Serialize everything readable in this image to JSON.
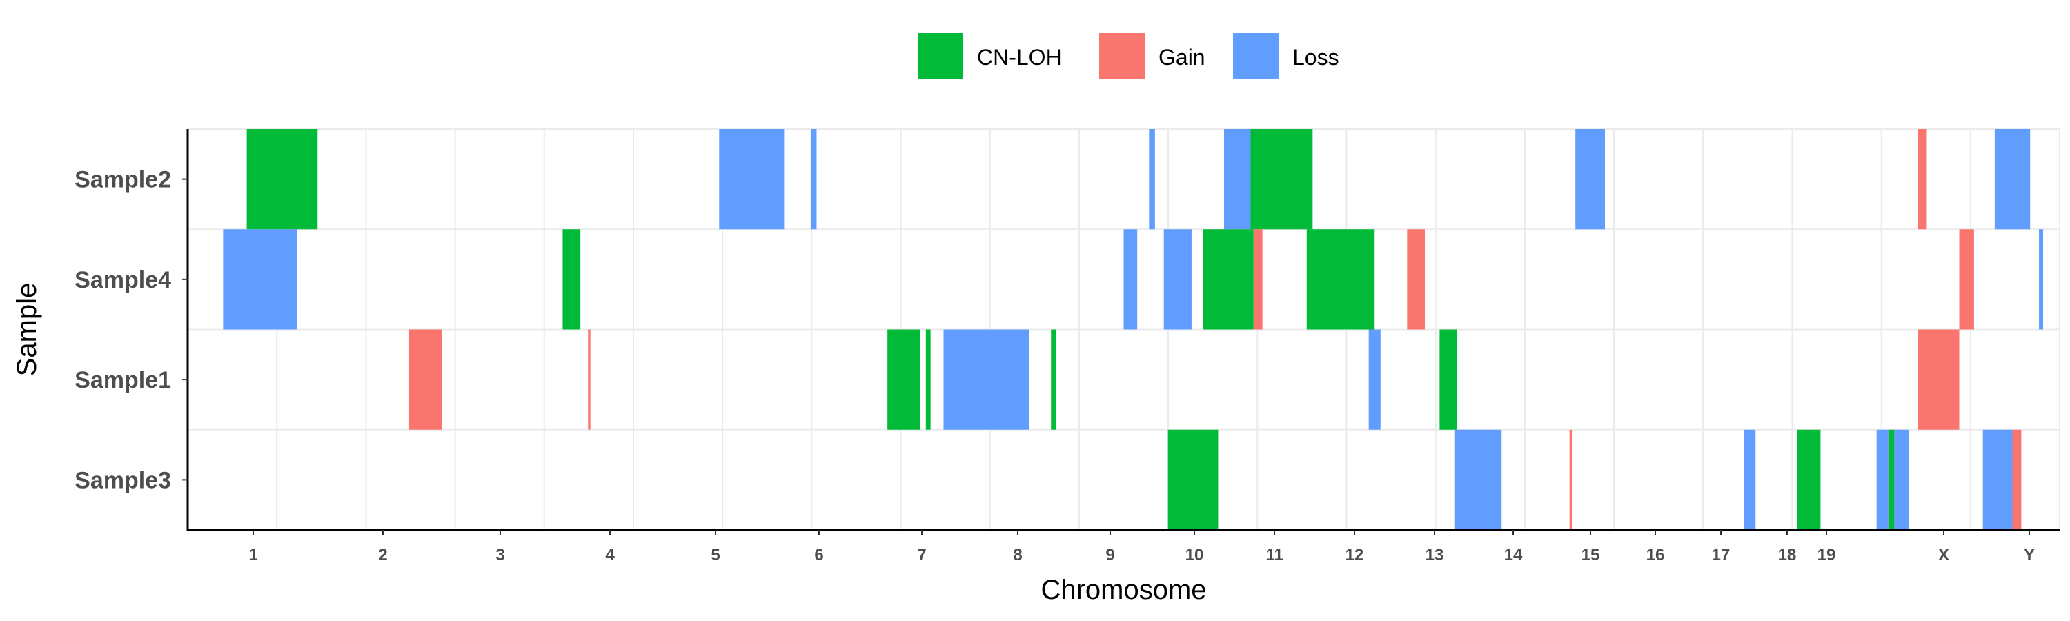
{
  "chart_data": {
    "type": "heatmap",
    "title": "",
    "xlabel": "Chromosome",
    "ylabel": "Sample",
    "grid": true,
    "legend_position": "top",
    "legend": [
      {
        "name": "CN-LOH",
        "color": "#00BA38"
      },
      {
        "name": "Gain",
        "color": "#F8766D"
      },
      {
        "name": "Loss",
        "color": "#619CFF"
      }
    ],
    "chromosomes": [
      {
        "label": "1",
        "start": 0.0,
        "length": 2.49
      },
      {
        "label": "2",
        "start": 2.49,
        "length": 2.42
      },
      {
        "label": "3",
        "start": 4.91,
        "length": 1.98
      },
      {
        "label": "4",
        "start": 6.89,
        "length": 1.9
      },
      {
        "label": "5",
        "start": 8.79,
        "length": 1.82
      },
      {
        "label": "6",
        "start": 10.61,
        "length": 1.71
      },
      {
        "label": "7",
        "start": 12.32,
        "length": 1.59
      },
      {
        "label": "8",
        "start": 13.91,
        "length": 1.45
      },
      {
        "label": "9",
        "start": 15.36,
        "length": 1.38
      },
      {
        "label": "10",
        "start": 16.74,
        "length": 1.34
      },
      {
        "label": "11",
        "start": 18.08,
        "length": 1.35
      },
      {
        "label": "12",
        "start": 19.43,
        "length": 1.33
      },
      {
        "label": "13",
        "start": 20.76,
        "length": 1.14
      },
      {
        "label": "14",
        "start": 21.9,
        "length": 1.07
      },
      {
        "label": "15",
        "start": 22.97,
        "length": 1.02
      },
      {
        "label": "16",
        "start": 23.99,
        "length": 0.9
      },
      {
        "label": "17",
        "start": 24.89,
        "length": 0.83
      },
      {
        "label": "18",
        "start": 25.72,
        "length": 0.8
      },
      {
        "label": "19",
        "start": 26.52,
        "length": 0.59
      },
      {
        "label": "X",
        "start": 27.11,
        "length": 1.56
      },
      {
        "label": "Y",
        "start": 28.67,
        "length": 0.57
      }
    ],
    "xlim": [
      0,
      29.24
    ],
    "samples": [
      "Sample2",
      "Sample4",
      "Sample1",
      "Sample3"
    ],
    "segments": [
      {
        "sample": "Sample2",
        "type": "CN-LOH",
        "start": 1.0,
        "end": 2.2
      },
      {
        "sample": "Sample2",
        "type": "Loss",
        "start": 9.0,
        "end": 10.1
      },
      {
        "sample": "Sample2",
        "type": "Loss",
        "start": 10.55,
        "end": 10.65
      },
      {
        "sample": "Sample2",
        "type": "Loss",
        "start": 16.28,
        "end": 16.38
      },
      {
        "sample": "Sample2",
        "type": "Loss",
        "start": 17.55,
        "end": 18.0
      },
      {
        "sample": "Sample2",
        "type": "CN-LOH",
        "start": 18.0,
        "end": 19.05
      },
      {
        "sample": "Sample2",
        "type": "Loss",
        "start": 23.5,
        "end": 24.0
      },
      {
        "sample": "Sample2",
        "type": "Gain",
        "start": 29.3,
        "end": 29.45
      },
      {
        "sample": "Sample2",
        "type": "Loss",
        "start": 30.6,
        "end": 31.2
      },
      {
        "sample": "Sample4",
        "type": "Loss",
        "start": 0.6,
        "end": 1.85
      },
      {
        "sample": "Sample4",
        "type": "CN-LOH",
        "start": 6.35,
        "end": 6.65
      },
      {
        "sample": "Sample4",
        "type": "Loss",
        "start": 15.85,
        "end": 16.08
      },
      {
        "sample": "Sample4",
        "type": "Loss",
        "start": 16.53,
        "end": 17.0
      },
      {
        "sample": "Sample4",
        "type": "CN-LOH",
        "start": 17.2,
        "end": 18.05
      },
      {
        "sample": "Sample4",
        "type": "Gain",
        "start": 18.05,
        "end": 18.2
      },
      {
        "sample": "Sample4",
        "type": "CN-LOH",
        "start": 18.95,
        "end": 20.1
      },
      {
        "sample": "Sample4",
        "type": "Gain",
        "start": 20.65,
        "end": 20.95
      },
      {
        "sample": "Sample4",
        "type": "Gain",
        "start": 30.0,
        "end": 30.25
      },
      {
        "sample": "Sample4",
        "type": "Loss",
        "start": 31.35,
        "end": 31.42
      },
      {
        "sample": "Sample1",
        "type": "Gain",
        "start": 3.75,
        "end": 4.3
      },
      {
        "sample": "Sample1",
        "type": "Gain",
        "start": 6.78,
        "end": 6.82
      },
      {
        "sample": "Sample1",
        "type": "CN-LOH",
        "start": 11.85,
        "end": 12.4
      },
      {
        "sample": "Sample1",
        "type": "CN-LOH",
        "start": 12.5,
        "end": 12.58
      },
      {
        "sample": "Sample1",
        "type": "Loss",
        "start": 12.8,
        "end": 14.25
      },
      {
        "sample": "Sample1",
        "type": "CN-LOH",
        "start": 14.62,
        "end": 14.7
      },
      {
        "sample": "Sample1",
        "type": "Loss",
        "start": 20.0,
        "end": 20.2
      },
      {
        "sample": "Sample1",
        "type": "CN-LOH",
        "start": 21.2,
        "end": 21.5
      },
      {
        "sample": "Sample1",
        "type": "Gain",
        "start": 29.3,
        "end": 30.0
      },
      {
        "sample": "Sample3",
        "type": "CN-LOH",
        "start": 16.6,
        "end": 17.45
      },
      {
        "sample": "Sample3",
        "type": "Loss",
        "start": 21.45,
        "end": 22.25
      },
      {
        "sample": "Sample3",
        "type": "Gain",
        "start": 23.4,
        "end": 23.44
      },
      {
        "sample": "Sample3",
        "type": "Loss",
        "start": 26.35,
        "end": 26.55
      },
      {
        "sample": "Sample3",
        "type": "CN-LOH",
        "start": 27.25,
        "end": 27.65
      },
      {
        "sample": "Sample3",
        "type": "Loss",
        "start": 28.6,
        "end": 28.8
      },
      {
        "sample": "Sample3",
        "type": "CN-LOH",
        "start": 28.8,
        "end": 28.9
      },
      {
        "sample": "Sample3",
        "type": "Loss",
        "start": 28.9,
        "end": 29.15
      },
      {
        "sample": "Sample3",
        "type": "Loss",
        "start": 30.4,
        "end": 30.9
      },
      {
        "sample": "Sample3",
        "type": "Gain",
        "start": 30.9,
        "end": 31.05
      }
    ]
  }
}
